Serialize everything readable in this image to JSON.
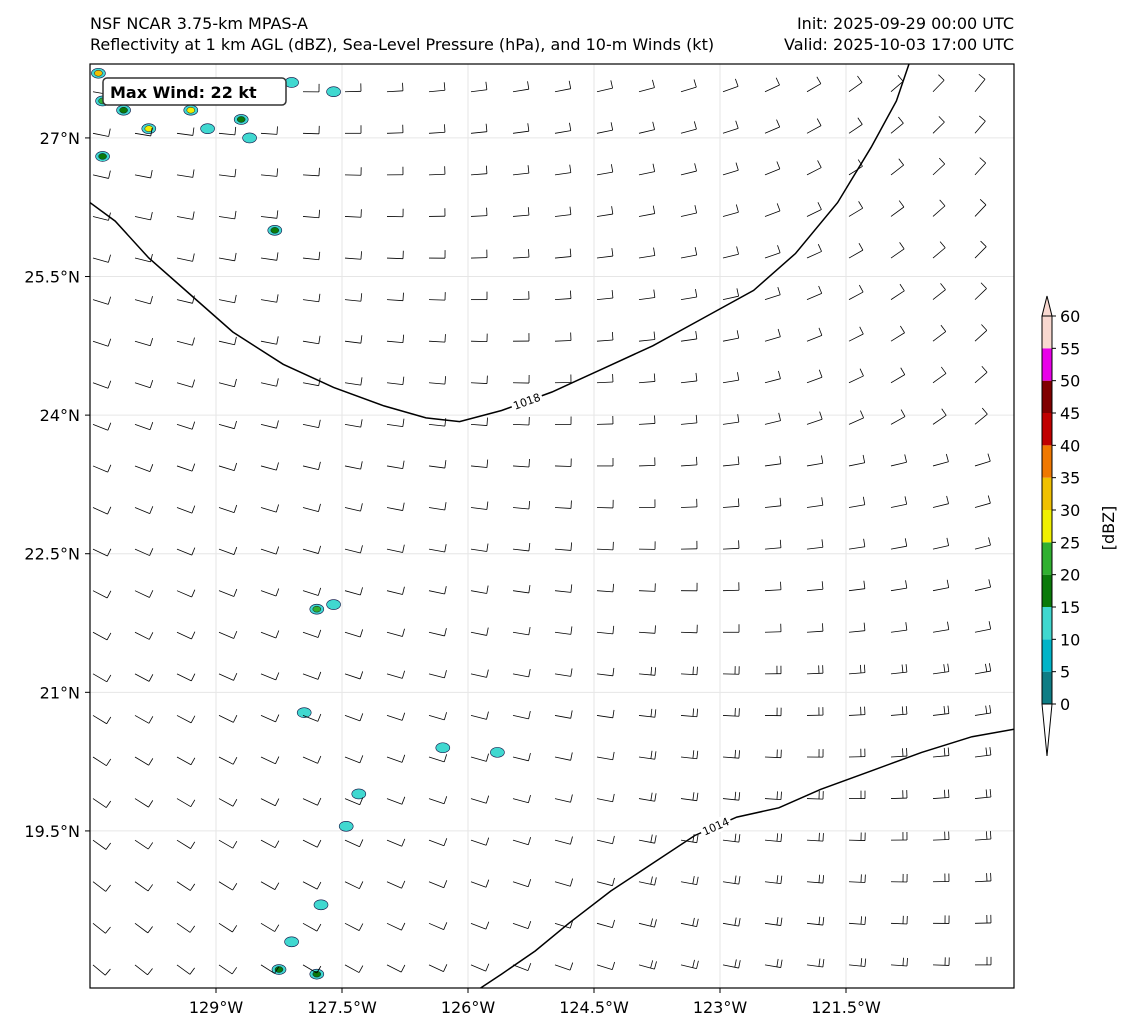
{
  "header": {
    "model": "NSF NCAR 3.75-km MPAS-A",
    "fields": "Reflectivity at 1 km AGL (dBZ), Sea-Level Pressure (hPa), and 10-m Winds (kt)",
    "init": "Init: 2025-09-29 00:00 UTC",
    "valid": "Valid: 2025-10-03 17:00 UTC"
  },
  "map": {
    "lon_range": [
      -130.5,
      -119.5
    ],
    "lat_range": [
      17.8,
      27.8
    ],
    "lon_ticks": [
      {
        "lon": -129.0,
        "label": "129°W"
      },
      {
        "lon": -127.5,
        "label": "127.5°W"
      },
      {
        "lon": -126.0,
        "label": "126°W"
      },
      {
        "lon": -124.5,
        "label": "124.5°W"
      },
      {
        "lon": -123.0,
        "label": "123°W"
      },
      {
        "lon": -121.5,
        "label": "121.5°W"
      }
    ],
    "lat_ticks": [
      {
        "lat": 27.0,
        "label": "27°N"
      },
      {
        "lat": 25.5,
        "label": "25.5°N"
      },
      {
        "lat": 24.0,
        "label": "24°N"
      },
      {
        "lat": 22.5,
        "label": "22.5°N"
      },
      {
        "lat": 21.0,
        "label": "21°N"
      },
      {
        "lat": 19.5,
        "label": "19.5°N"
      }
    ],
    "gridlines": true,
    "max_wind_label": "Max Wind: 22 kt",
    "isobars": [
      {
        "value": "1018",
        "points": [
          [
            -130.5,
            26.3
          ],
          [
            -130.2,
            26.1
          ],
          [
            -129.8,
            25.7
          ],
          [
            -129.3,
            25.3
          ],
          [
            -128.8,
            24.9
          ],
          [
            -128.2,
            24.55
          ],
          [
            -127.6,
            24.3
          ],
          [
            -127.0,
            24.1
          ],
          [
            -126.5,
            23.97
          ],
          [
            -126.1,
            23.93
          ],
          [
            -125.6,
            24.05
          ],
          [
            -125.0,
            24.25
          ],
          [
            -124.4,
            24.5
          ],
          [
            -123.8,
            24.75
          ],
          [
            -123.2,
            25.05
          ],
          [
            -122.6,
            25.35
          ],
          [
            -122.1,
            25.75
          ],
          [
            -121.6,
            26.3
          ],
          [
            -121.2,
            26.9
          ],
          [
            -120.9,
            27.4
          ],
          [
            -120.75,
            27.8
          ]
        ]
      },
      {
        "value": "1014",
        "points": [
          [
            -125.85,
            17.8
          ],
          [
            -125.6,
            17.95
          ],
          [
            -125.2,
            18.2
          ],
          [
            -124.8,
            18.5
          ],
          [
            -124.3,
            18.85
          ],
          [
            -123.8,
            19.15
          ],
          [
            -123.3,
            19.45
          ],
          [
            -122.8,
            19.65
          ],
          [
            -122.3,
            19.75
          ],
          [
            -121.8,
            19.95
          ],
          [
            -121.2,
            20.15
          ],
          [
            -120.6,
            20.35
          ],
          [
            -120.0,
            20.52
          ],
          [
            -119.5,
            20.6
          ]
        ]
      }
    ],
    "wind_field": {
      "lon_start": -130.5,
      "lon_step": 0.5,
      "lon_count": 22,
      "lat_start": 27.5,
      "lat_step": -0.45,
      "lat_count": 22,
      "speeds_kt": "5-22"
    },
    "reflectivity_cells": [
      {
        "lon": -130.4,
        "lat": 27.7,
        "dbz": 30
      },
      {
        "lon": -130.35,
        "lat": 27.4,
        "dbz": 20
      },
      {
        "lon": -130.1,
        "lat": 27.3,
        "dbz": 15
      },
      {
        "lon": -129.8,
        "lat": 27.1,
        "dbz": 25
      },
      {
        "lon": -129.3,
        "lat": 27.3,
        "dbz": 25
      },
      {
        "lon": -128.7,
        "lat": 27.2,
        "dbz": 15
      },
      {
        "lon": -128.6,
        "lat": 27.0,
        "dbz": 10
      },
      {
        "lon": -129.1,
        "lat": 27.1,
        "dbz": 10
      },
      {
        "lon": -130.35,
        "lat": 26.8,
        "dbz": 15
      },
      {
        "lon": -127.6,
        "lat": 27.5,
        "dbz": 5
      },
      {
        "lon": -128.1,
        "lat": 27.6,
        "dbz": 5
      },
      {
        "lon": -128.3,
        "lat": 26.0,
        "dbz": 15
      },
      {
        "lon": -127.8,
        "lat": 21.9,
        "dbz": 20
      },
      {
        "lon": -127.6,
        "lat": 21.95,
        "dbz": 10
      },
      {
        "lon": -127.95,
        "lat": 20.78,
        "dbz": 10
      },
      {
        "lon": -126.3,
        "lat": 20.4,
        "dbz": 5
      },
      {
        "lon": -125.65,
        "lat": 20.35,
        "dbz": 5
      },
      {
        "lon": -127.3,
        "lat": 19.9,
        "dbz": 10
      },
      {
        "lon": -127.45,
        "lat": 19.55,
        "dbz": 10
      },
      {
        "lon": -127.75,
        "lat": 18.7,
        "dbz": 10
      },
      {
        "lon": -128.1,
        "lat": 18.3,
        "dbz": 10
      },
      {
        "lon": -128.25,
        "lat": 18.0,
        "dbz": 15
      },
      {
        "lon": -127.8,
        "lat": 17.95,
        "dbz": 15
      }
    ]
  },
  "colorbar": {
    "unit_label": "[dBZ]",
    "levels": [
      "0",
      "5",
      "10",
      "15",
      "20",
      "25",
      "30",
      "35",
      "40",
      "45",
      "50",
      "55",
      "60"
    ],
    "colors": [
      "#ffffff",
      "#0e7d85",
      "#00b4c8",
      "#40d8d0",
      "#0a7a0a",
      "#30b030",
      "#f0f000",
      "#f0c000",
      "#f07800",
      "#c00000",
      "#800000",
      "#e800e8",
      "#f8d8d0"
    ]
  }
}
